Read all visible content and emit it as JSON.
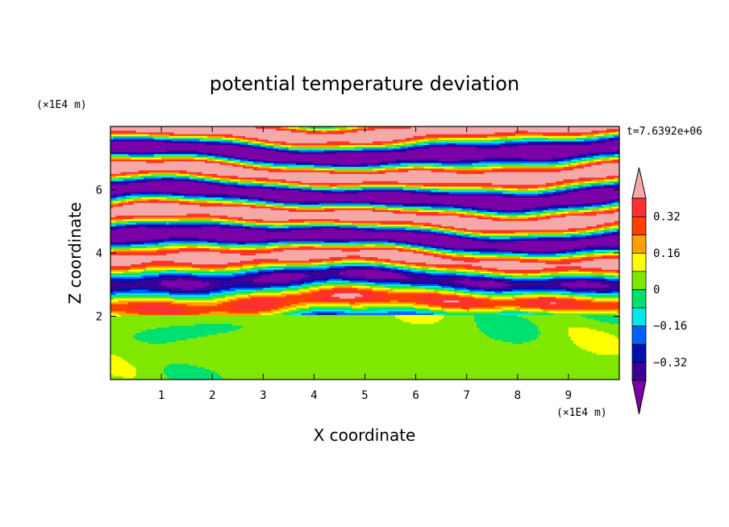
{
  "chart_data": {
    "type": "heatmap",
    "title": "potential temperature deviation",
    "xlabel": "X coordinate",
    "ylabel": "Z coordinate",
    "x_unit": "(×1E4 m)",
    "y_unit": "(×1E4 m)",
    "time_label": "t=7.6392e+06",
    "xlim": [
      0,
      10
    ],
    "ylim": [
      0,
      8
    ],
    "x_ticks": [
      1,
      2,
      3,
      4,
      5,
      6,
      7,
      8,
      9
    ],
    "y_ticks": [
      2,
      4,
      6
    ],
    "colorbar": {
      "levels": [
        -0.4,
        -0.32,
        -0.24,
        -0.16,
        -0.08,
        0,
        0.08,
        0.16,
        0.24,
        0.32,
        0.4
      ],
      "labeled_levels": [
        0.32,
        0.16,
        0,
        -0.16,
        -0.32
      ],
      "labels": [
        "0.32",
        "0.16",
        "0",
        "−0.16",
        "−0.32"
      ],
      "colors": [
        "#7a00a8",
        "#3a0096",
        "#0010b0",
        "#0060ff",
        "#00e8e8",
        "#00e070",
        "#80e800",
        "#ffff00",
        "#ffa000",
        "#ff4000",
        "#ff3030",
        "#f4a8a8"
      ],
      "extend": "both"
    },
    "regions": {
      "lower_boundary_layer": {
        "z_range": [
          0,
          2
        ],
        "dominant_values": [
          0,
          0.08
        ]
      },
      "mixed_layer": {
        "z_range": [
          2,
          4.5
        ],
        "value_range": [
          -0.4,
          0.4
        ]
      },
      "upper_layer": {
        "z_range": [
          4.5,
          8
        ],
        "dominant_values": [
          -0.4,
          0.4
        ]
      }
    }
  }
}
